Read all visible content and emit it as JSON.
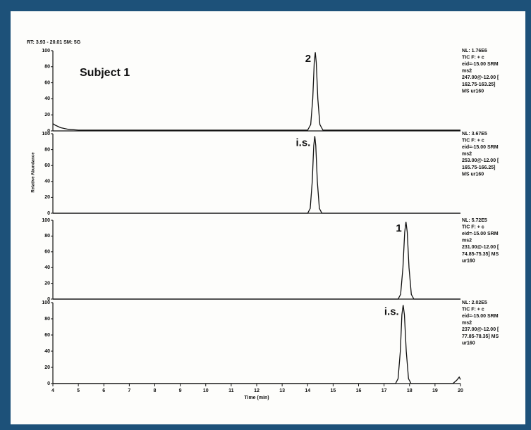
{
  "header": "RT: 3.93 - 20.01   SM: 5G",
  "y_label": "Relative Abundance",
  "chart_data": [
    {
      "type": "line",
      "title": "Subject 1",
      "peak_label": "2",
      "x": [
        4,
        4.1,
        4.3,
        4.6,
        5,
        6,
        14.0,
        14.12,
        14.2,
        14.26,
        14.3,
        14.34,
        14.4,
        14.48,
        14.6,
        20
      ],
      "values": [
        9,
        7,
        4,
        2,
        1,
        1,
        1,
        8,
        40,
        85,
        98,
        85,
        40,
        8,
        1,
        1
      ],
      "color": "#111111",
      "xlim": [
        4,
        20
      ],
      "ylim": [
        0,
        100
      ],
      "yticks": [
        0,
        20,
        40,
        60,
        80,
        100
      ],
      "info": [
        "NL: 1.76E6",
        "TIC F: + c",
        "eid=-15.00 SRM",
        "ms2",
        "247.00@-12.00 [",
        "162.75-163.25]",
        "MS ur160"
      ]
    },
    {
      "type": "line",
      "peak_label": "i.s.",
      "x": [
        4,
        14.0,
        14.1,
        14.18,
        14.24,
        14.28,
        14.32,
        14.38,
        14.46,
        14.56,
        20
      ],
      "values": [
        0,
        0,
        6,
        40,
        85,
        97,
        85,
        40,
        6,
        0,
        0
      ],
      "color": "#111111",
      "xlim": [
        4,
        20
      ],
      "ylim": [
        0,
        100
      ],
      "yticks": [
        0,
        20,
        40,
        60,
        80,
        100
      ],
      "info": [
        "NL: 3.67E5",
        "TIC F: + c",
        "eid=-15.00 SRM",
        "ms2",
        "253.00@-12.00 [",
        "165.75-166.25]",
        "MS ur160"
      ]
    },
    {
      "type": "line",
      "peak_label": "1",
      "x": [
        4,
        17.55,
        17.65,
        17.74,
        17.81,
        17.86,
        17.91,
        17.98,
        18.07,
        18.17,
        20
      ],
      "values": [
        0,
        0,
        6,
        40,
        85,
        98,
        85,
        40,
        6,
        0,
        0
      ],
      "color": "#111111",
      "xlim": [
        4,
        20
      ],
      "ylim": [
        0,
        100
      ],
      "yticks": [
        0,
        20,
        40,
        60,
        80,
        100
      ],
      "info": [
        "NL: 5.72E5",
        "TIC F: + c",
        "eid=-15.00 SRM",
        "ms2",
        "231.00@-12.00 [",
        "74.85-75.35] MS",
        "ur160"
      ]
    },
    {
      "type": "line",
      "peak_label": "i.s.",
      "x": [
        4,
        17.45,
        17.55,
        17.64,
        17.7,
        17.75,
        17.8,
        17.87,
        17.96,
        18.06,
        19.7,
        19.85,
        19.95,
        20
      ],
      "values": [
        0,
        0,
        6,
        40,
        85,
        97,
        85,
        40,
        6,
        0,
        0,
        4,
        8,
        5
      ],
      "color": "#111111",
      "xlim": [
        4,
        20
      ],
      "ylim": [
        0,
        100
      ],
      "yticks": [
        0,
        20,
        40,
        60,
        80,
        100
      ],
      "xticks": [
        4,
        5,
        6,
        7,
        8,
        9,
        10,
        11,
        12,
        13,
        14,
        15,
        16,
        17,
        18,
        19,
        20
      ],
      "x_label": "Time (min)",
      "info": [
        "NL: 2.02E5",
        "TIC F: + c",
        "eid=-15.00 SRM",
        "ms2",
        "237.00@-12.00 [",
        "77.85-78.35] MS",
        "ur160"
      ]
    }
  ]
}
